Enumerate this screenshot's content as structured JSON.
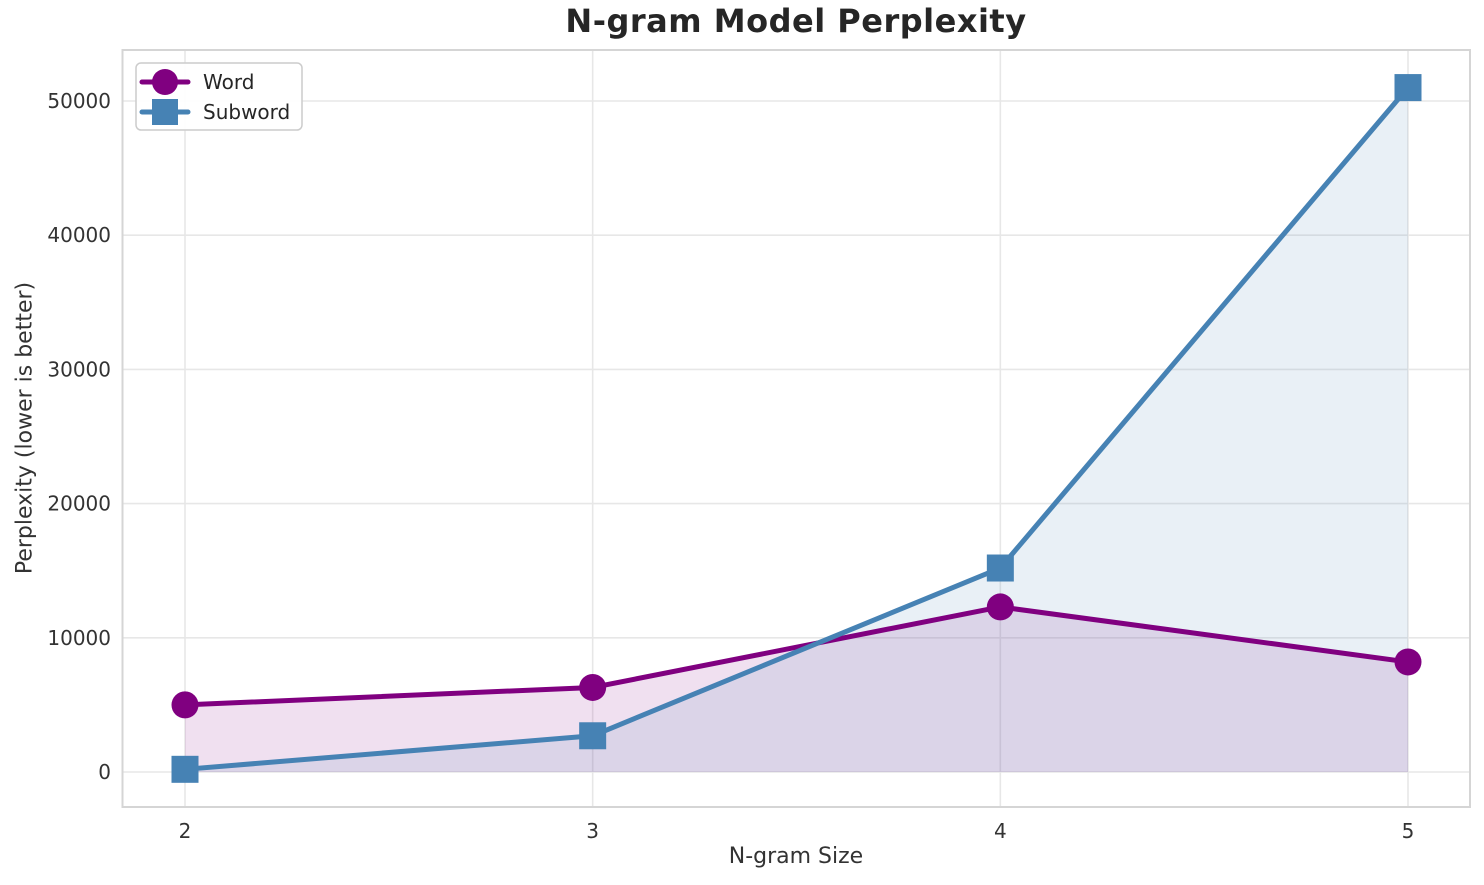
{
  "chart_data": {
    "type": "line",
    "title": "N-gram Model Perplexity",
    "xlabel": "N-gram Size",
    "ylabel": "Perplexity (lower is better)",
    "x": [
      2,
      3,
      4,
      5
    ],
    "xticks": [
      "2",
      "3",
      "4",
      "5"
    ],
    "yticks": [
      0,
      10000,
      20000,
      30000,
      40000,
      50000
    ],
    "ytick_labels": [
      "0",
      "10000",
      "20000",
      "30000",
      "40000",
      "50000"
    ],
    "ylim": [
      0,
      54000
    ],
    "grid": true,
    "legend_position": "upper-left",
    "series": [
      {
        "name": "Word",
        "values": [
          5000,
          6300,
          12300,
          8200
        ],
        "color": "#800080",
        "marker": "circle",
        "fill_to_zero": true,
        "fill_alpha": 0.12
      },
      {
        "name": "Subword",
        "values": [
          200,
          2700,
          15200,
          51000
        ],
        "color": "#4682b4",
        "marker": "square",
        "fill_to_zero": true,
        "fill_alpha": 0.12
      }
    ],
    "colors": {
      "gridline": "#e7e7e7",
      "spine": "#d5d5d5",
      "tick_text": "#333333",
      "legend_border": "#cccccc",
      "legend_bg": "#ffffff"
    }
  }
}
